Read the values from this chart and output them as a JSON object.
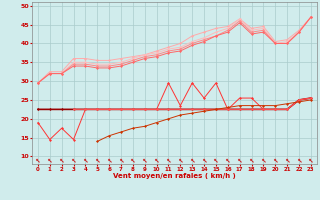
{
  "x": [
    0,
    1,
    2,
    3,
    4,
    5,
    6,
    7,
    8,
    9,
    10,
    11,
    12,
    13,
    14,
    15,
    16,
    17,
    18,
    19,
    20,
    21,
    22,
    23
  ],
  "series": [
    {
      "color": "#ffaaaa",
      "linewidth": 0.7,
      "marker": "D",
      "markersize": 1.5,
      "linestyle": "-",
      "y": [
        29.5,
        32.5,
        32.5,
        36.0,
        36.0,
        35.5,
        35.5,
        36.0,
        36.5,
        37.0,
        38.0,
        39.0,
        40.0,
        42.0,
        43.0,
        44.0,
        44.5,
        46.5,
        44.0,
        44.5,
        40.5,
        41.0,
        43.5,
        47.0
      ]
    },
    {
      "color": "#ffbbbb",
      "linewidth": 0.7,
      "marker": "D",
      "markersize": 1.5,
      "linestyle": "-",
      "y": [
        29.5,
        32.0,
        32.0,
        35.0,
        35.0,
        34.5,
        34.5,
        35.0,
        36.0,
        37.0,
        37.5,
        38.5,
        39.0,
        40.5,
        41.5,
        43.0,
        44.0,
        46.5,
        43.5,
        44.0,
        40.0,
        40.5,
        43.0,
        47.0
      ]
    },
    {
      "color": "#ff8888",
      "linewidth": 0.7,
      "marker": "D",
      "markersize": 1.5,
      "linestyle": "-",
      "y": [
        29.5,
        32.0,
        32.0,
        34.5,
        34.5,
        34.0,
        34.0,
        34.5,
        35.5,
        36.5,
        37.0,
        38.0,
        38.5,
        40.0,
        41.0,
        42.0,
        43.5,
        46.0,
        43.0,
        43.5,
        40.0,
        40.0,
        43.0,
        47.0
      ]
    },
    {
      "color": "#ff6666",
      "linewidth": 0.7,
      "marker": "D",
      "markersize": 1.5,
      "linestyle": "-",
      "y": [
        29.5,
        32.0,
        32.0,
        34.0,
        34.0,
        33.5,
        33.5,
        34.0,
        35.0,
        36.0,
        36.5,
        37.5,
        38.0,
        39.5,
        40.5,
        42.0,
        43.0,
        45.5,
        42.5,
        43.0,
        40.0,
        40.0,
        43.0,
        47.0
      ]
    },
    {
      "color": "#990000",
      "linewidth": 1.2,
      "marker": "D",
      "markersize": 1.5,
      "linestyle": "-",
      "y": [
        22.5,
        22.5,
        22.5,
        22.5,
        22.5,
        22.5,
        22.5,
        22.5,
        22.5,
        22.5,
        22.5,
        22.5,
        22.5,
        22.5,
        22.5,
        22.5,
        22.5,
        22.5,
        22.5,
        22.5,
        22.5,
        22.5,
        25.0,
        25.5
      ]
    },
    {
      "color": "#ff3333",
      "linewidth": 0.7,
      "marker": "D",
      "markersize": 1.5,
      "linestyle": "-",
      "y": [
        19.0,
        14.5,
        17.5,
        14.5,
        22.5,
        22.5,
        22.5,
        22.5,
        22.5,
        22.5,
        22.5,
        29.5,
        23.5,
        29.5,
        25.5,
        29.5,
        22.5,
        25.5,
        25.5,
        22.5,
        22.5,
        22.5,
        25.0,
        25.5
      ]
    },
    {
      "color": "#ff5555",
      "linewidth": 0.7,
      "marker": "D",
      "markersize": 1.5,
      "linestyle": "-",
      "y": [
        null,
        null,
        null,
        22.5,
        22.5,
        22.5,
        22.5,
        22.5,
        22.5,
        22.5,
        22.5,
        22.5,
        22.5,
        22.5,
        22.5,
        22.5,
        22.5,
        22.5,
        22.5,
        22.5,
        22.5,
        22.5,
        25.0,
        25.5
      ]
    },
    {
      "color": "#cc3300",
      "linewidth": 0.7,
      "marker": "D",
      "markersize": 1.5,
      "linestyle": "-",
      "y": [
        null,
        null,
        null,
        null,
        null,
        14.0,
        15.5,
        16.5,
        17.5,
        18.0,
        19.0,
        20.0,
        21.0,
        21.5,
        22.0,
        22.5,
        23.0,
        23.5,
        23.5,
        23.5,
        23.5,
        24.0,
        24.5,
        25.0
      ]
    }
  ],
  "arrow_symbol": "←",
  "arrows_color": "#cc0000",
  "xlabel": "Vent moyen/en rafales ( km/h )",
  "ylabel_ticks": [
    10,
    15,
    20,
    25,
    30,
    35,
    40,
    45,
    50
  ],
  "xlim": [
    -0.5,
    23.5
  ],
  "ylim": [
    8,
    51
  ],
  "background_color": "#d0ecec",
  "grid_color": "#aacccc",
  "tick_color": "#cc0000",
  "xlabel_color": "#cc0000"
}
